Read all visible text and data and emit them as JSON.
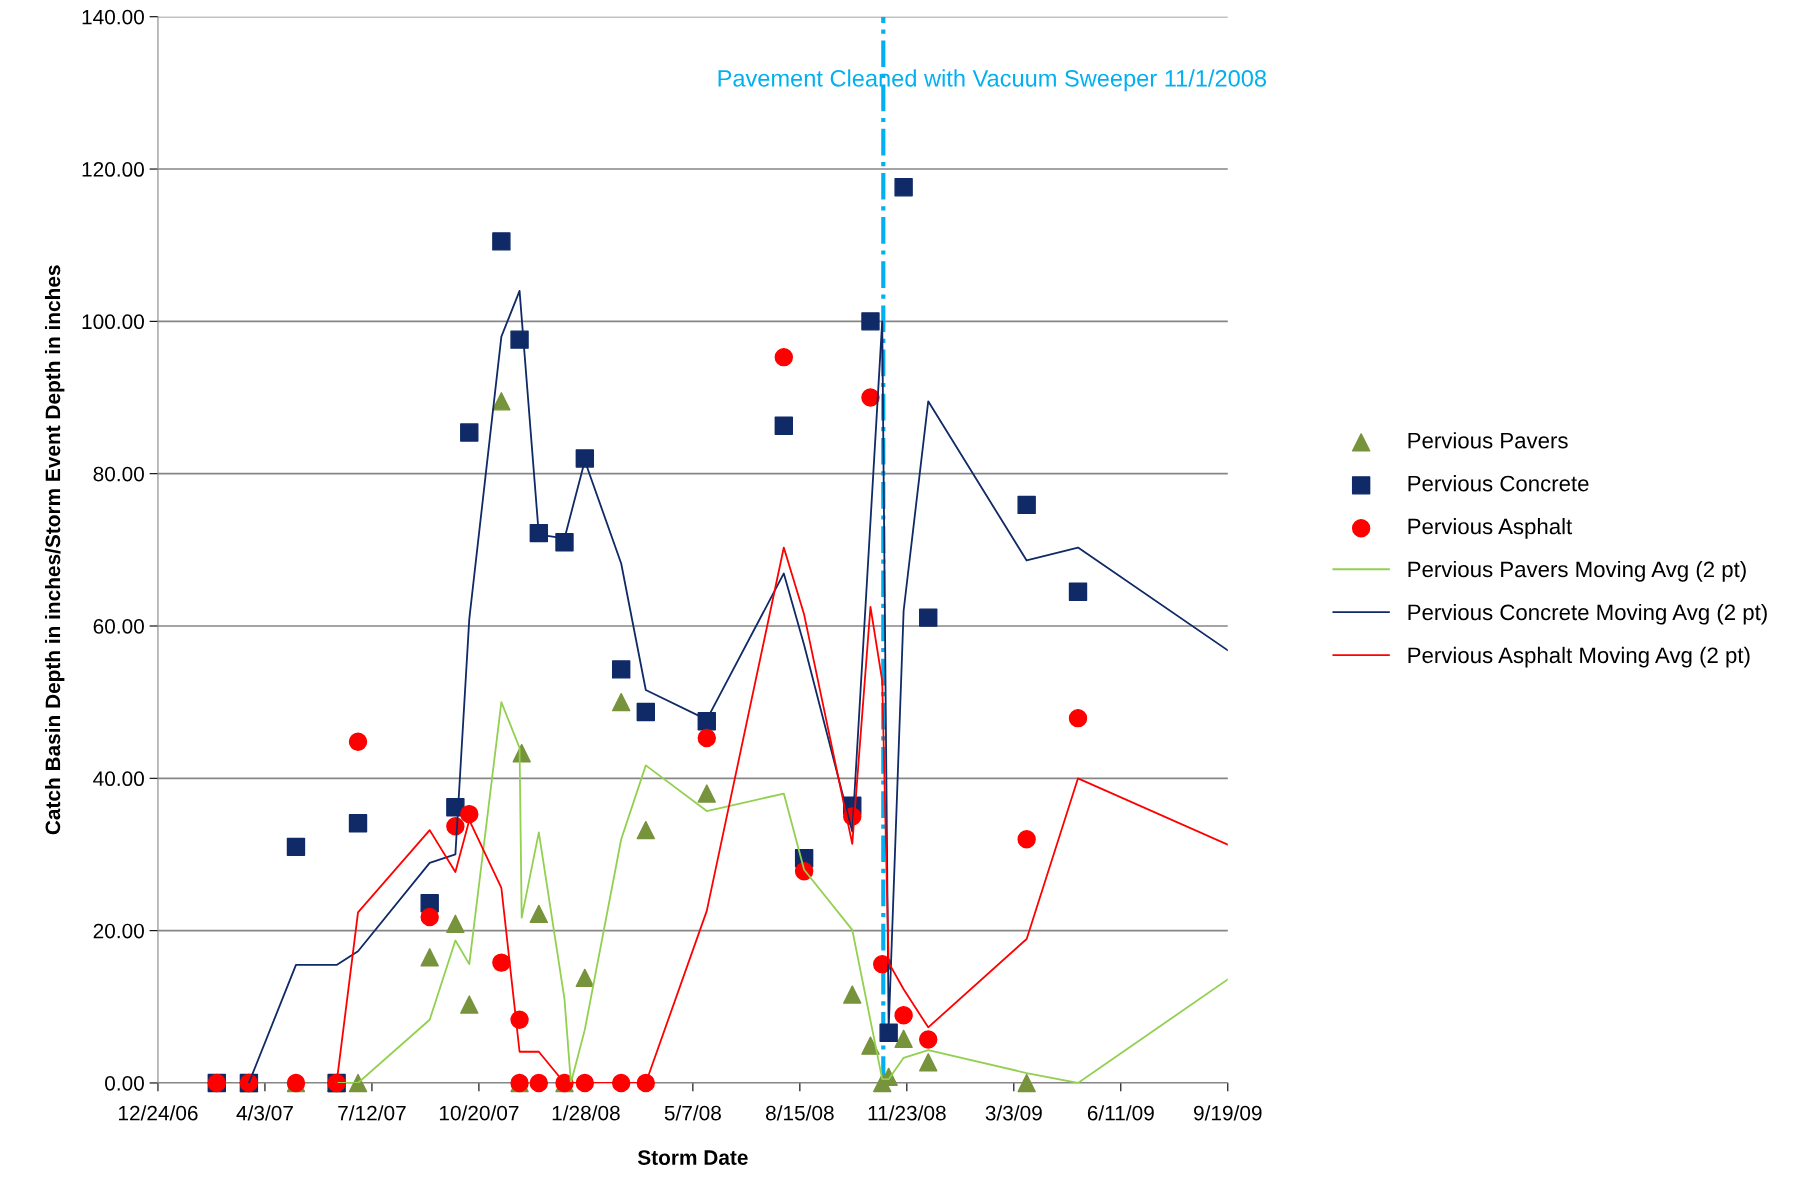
{
  "chart_data": {
    "type": "scatter",
    "xlabel": "Storm Date",
    "ylabel": "Catch Basin Depth in inches/Storm Event Depth in inches",
    "xlim": [
      "2006-12-24",
      "2009-09-19"
    ],
    "xticks": [
      {
        "value": "2006-12-24",
        "label": "12/24/06"
      },
      {
        "value": "2007-04-03",
        "label": "4/3/07"
      },
      {
        "value": "2007-07-12",
        "label": "7/12/07"
      },
      {
        "value": "2007-10-20",
        "label": "10/20/07"
      },
      {
        "value": "2008-01-28",
        "label": "1/28/08"
      },
      {
        "value": "2008-05-07",
        "label": "5/7/08"
      },
      {
        "value": "2008-08-15",
        "label": "8/15/08"
      },
      {
        "value": "2008-11-23",
        "label": "11/23/08"
      },
      {
        "value": "2009-03-03",
        "label": "3/3/09"
      },
      {
        "value": "2009-06-11",
        "label": "6/11/09"
      },
      {
        "value": "2009-09-19",
        "label": "9/19/09"
      }
    ],
    "ylim": [
      0,
      140
    ],
    "yticks": [
      {
        "value": 0,
        "label": "0.00"
      },
      {
        "value": 20,
        "label": "20.00"
      },
      {
        "value": 40,
        "label": "40.00"
      },
      {
        "value": 60,
        "label": "60.00"
      },
      {
        "value": 80,
        "label": "80.00"
      },
      {
        "value": 100,
        "label": "100.00"
      },
      {
        "value": 120,
        "label": "120.00"
      },
      {
        "value": 140,
        "label": "140.00"
      }
    ],
    "grid": "y",
    "legend": "right",
    "ref_lines": [
      {
        "axis": "x",
        "value": "2008-11-01",
        "label": "Pavement Cleaned with Vacuum Sweeper 11/1/2008",
        "color": "#00b0f0",
        "line_style": "dashdot"
      }
    ],
    "series": [
      {
        "name": "Pervious Pavers",
        "marker": "triangle",
        "color": "#77933c",
        "x": [
          "2007-03-19",
          "2007-05-02",
          "2007-06-09",
          "2007-06-29",
          "2007-09-04",
          "2007-09-28",
          "2007-10-11",
          "2007-11-10",
          "2007-11-27",
          "2007-11-29",
          "2007-12-15",
          "2008-01-08",
          "2008-01-27",
          "2008-03-01",
          "2008-03-24",
          "2008-05-20",
          "2008-10-03",
          "2008-10-20",
          "2008-10-31",
          "2008-11-06",
          "2008-11-20",
          "2008-12-13",
          "2009-03-15"
        ],
        "values": [
          0,
          0,
          0,
          0,
          16.5,
          20.9,
          10.3,
          89.5,
          0,
          43.3,
          22.2,
          0,
          13.8,
          50.0,
          33.2,
          38.0,
          11.6,
          4.9,
          0,
          0.8,
          5.8,
          2.7,
          0
        ]
      },
      {
        "name": "Pervious Concrete",
        "marker": "square",
        "color": "#0f2a66",
        "x": [
          "2007-02-17",
          "2007-03-19",
          "2007-05-02",
          "2007-06-09",
          "2007-06-29",
          "2007-09-04",
          "2007-09-28",
          "2007-10-11",
          "2007-11-10",
          "2007-11-27",
          "2007-12-15",
          "2008-01-08",
          "2008-01-27",
          "2008-03-01",
          "2008-03-24",
          "2008-05-20",
          "2008-07-31",
          "2008-08-19",
          "2008-10-03",
          "2008-10-20",
          "2008-11-06",
          "2008-11-20",
          "2008-12-13",
          "2009-03-15",
          "2009-05-02"
        ],
        "values": [
          0,
          0,
          31.0,
          0,
          34.1,
          23.6,
          36.2,
          85.4,
          110.5,
          97.6,
          72.2,
          71.0,
          82.0,
          54.3,
          48.7,
          47.5,
          86.3,
          29.5,
          36.4,
          100.0,
          6.6,
          117.6,
          61.1,
          75.9,
          64.5
        ]
      },
      {
        "name": "Pervious Asphalt",
        "marker": "circle",
        "color": "#ff0000",
        "x": [
          "2007-02-17",
          "2007-03-19",
          "2007-05-02",
          "2007-06-09",
          "2007-06-29",
          "2007-09-04",
          "2007-09-28",
          "2007-10-11",
          "2007-11-10",
          "2007-11-27",
          "2007-11-27",
          "2007-12-15",
          "2008-01-08",
          "2008-01-27",
          "2008-03-01",
          "2008-03-24",
          "2008-05-20",
          "2008-07-31",
          "2008-08-19",
          "2008-10-03",
          "2008-10-20",
          "2008-10-31",
          "2008-11-20",
          "2008-12-13",
          "2009-03-15",
          "2009-05-02"
        ],
        "values": [
          0,
          0,
          0,
          0,
          44.8,
          21.8,
          33.7,
          35.3,
          15.8,
          8.3,
          0,
          0,
          0,
          0,
          0,
          0,
          45.3,
          95.3,
          27.8,
          35.0,
          90.0,
          15.6,
          8.9,
          5.7,
          32.0,
          47.9
        ]
      },
      {
        "name": "Pervious Pavers Moving Avg (2 pt)",
        "type": "line",
        "marker": "none",
        "color": "#92d050",
        "x": [
          "2007-06-09",
          "2007-06-29",
          "2007-09-04",
          "2007-09-28",
          "2007-10-11",
          "2007-11-10",
          "2007-11-27",
          "2007-11-29",
          "2007-12-15",
          "2008-01-08",
          "2008-01-14",
          "2008-01-27",
          "2008-03-01",
          "2008-03-24",
          "2008-05-20",
          "2008-07-31",
          "2008-08-19",
          "2008-10-03",
          "2008-10-31",
          "2008-11-06",
          "2008-11-20",
          "2008-12-13",
          "2009-03-15",
          "2009-05-02",
          "2009-09-19"
        ],
        "values": [
          0,
          0,
          8.3,
          18.7,
          15.6,
          50.0,
          44.0,
          21.7,
          32.9,
          11.0,
          0,
          7.0,
          32.0,
          41.7,
          35.7,
          38.0,
          28.0,
          20.1,
          0.5,
          0.5,
          3.3,
          4.3,
          1.3,
          0,
          13.6
        ]
      },
      {
        "name": "Pervious Concrete Moving Avg (2 pt)",
        "type": "line",
        "marker": "none",
        "color": "#0f2a66",
        "x": [
          "2007-03-19",
          "2007-05-02",
          "2007-06-09",
          "2007-06-29",
          "2007-09-04",
          "2007-09-28",
          "2007-10-11",
          "2007-11-10",
          "2007-11-27",
          "2007-12-15",
          "2008-01-08",
          "2008-01-27",
          "2008-03-01",
          "2008-03-24",
          "2008-05-20",
          "2008-07-31",
          "2008-08-19",
          "2008-10-03",
          "2008-10-31",
          "2008-11-06",
          "2008-11-20",
          "2008-12-13",
          "2009-03-15",
          "2009-05-02",
          "2009-09-19"
        ],
        "values": [
          0,
          15.5,
          15.5,
          17.3,
          28.9,
          30.0,
          60.9,
          98.0,
          104.0,
          72.0,
          71.5,
          81.7,
          68.2,
          51.6,
          47.7,
          66.9,
          57.5,
          33.0,
          100.0,
          7.0,
          62.0,
          89.5,
          68.6,
          70.3,
          56.8
        ]
      },
      {
        "name": "Pervious Asphalt Moving Avg (2 pt)",
        "type": "line",
        "marker": "none",
        "color": "#ff0000",
        "x": [
          "2007-06-09",
          "2007-06-29",
          "2007-09-04",
          "2007-09-28",
          "2007-10-11",
          "2007-11-10",
          "2007-11-27",
          "2007-12-15",
          "2008-01-08",
          "2008-03-24",
          "2008-05-20",
          "2008-07-31",
          "2008-08-19",
          "2008-10-03",
          "2008-10-20",
          "2008-10-31",
          "2008-11-06",
          "2008-11-20",
          "2008-12-13",
          "2009-03-15",
          "2009-05-02",
          "2009-09-19"
        ],
        "values": [
          0,
          22.4,
          33.2,
          27.7,
          34.5,
          25.6,
          4.1,
          4.1,
          0,
          0,
          22.6,
          70.3,
          61.5,
          31.4,
          62.5,
          52.8,
          15.8,
          12.3,
          7.3,
          18.9,
          40.0,
          31.3
        ]
      }
    ]
  }
}
